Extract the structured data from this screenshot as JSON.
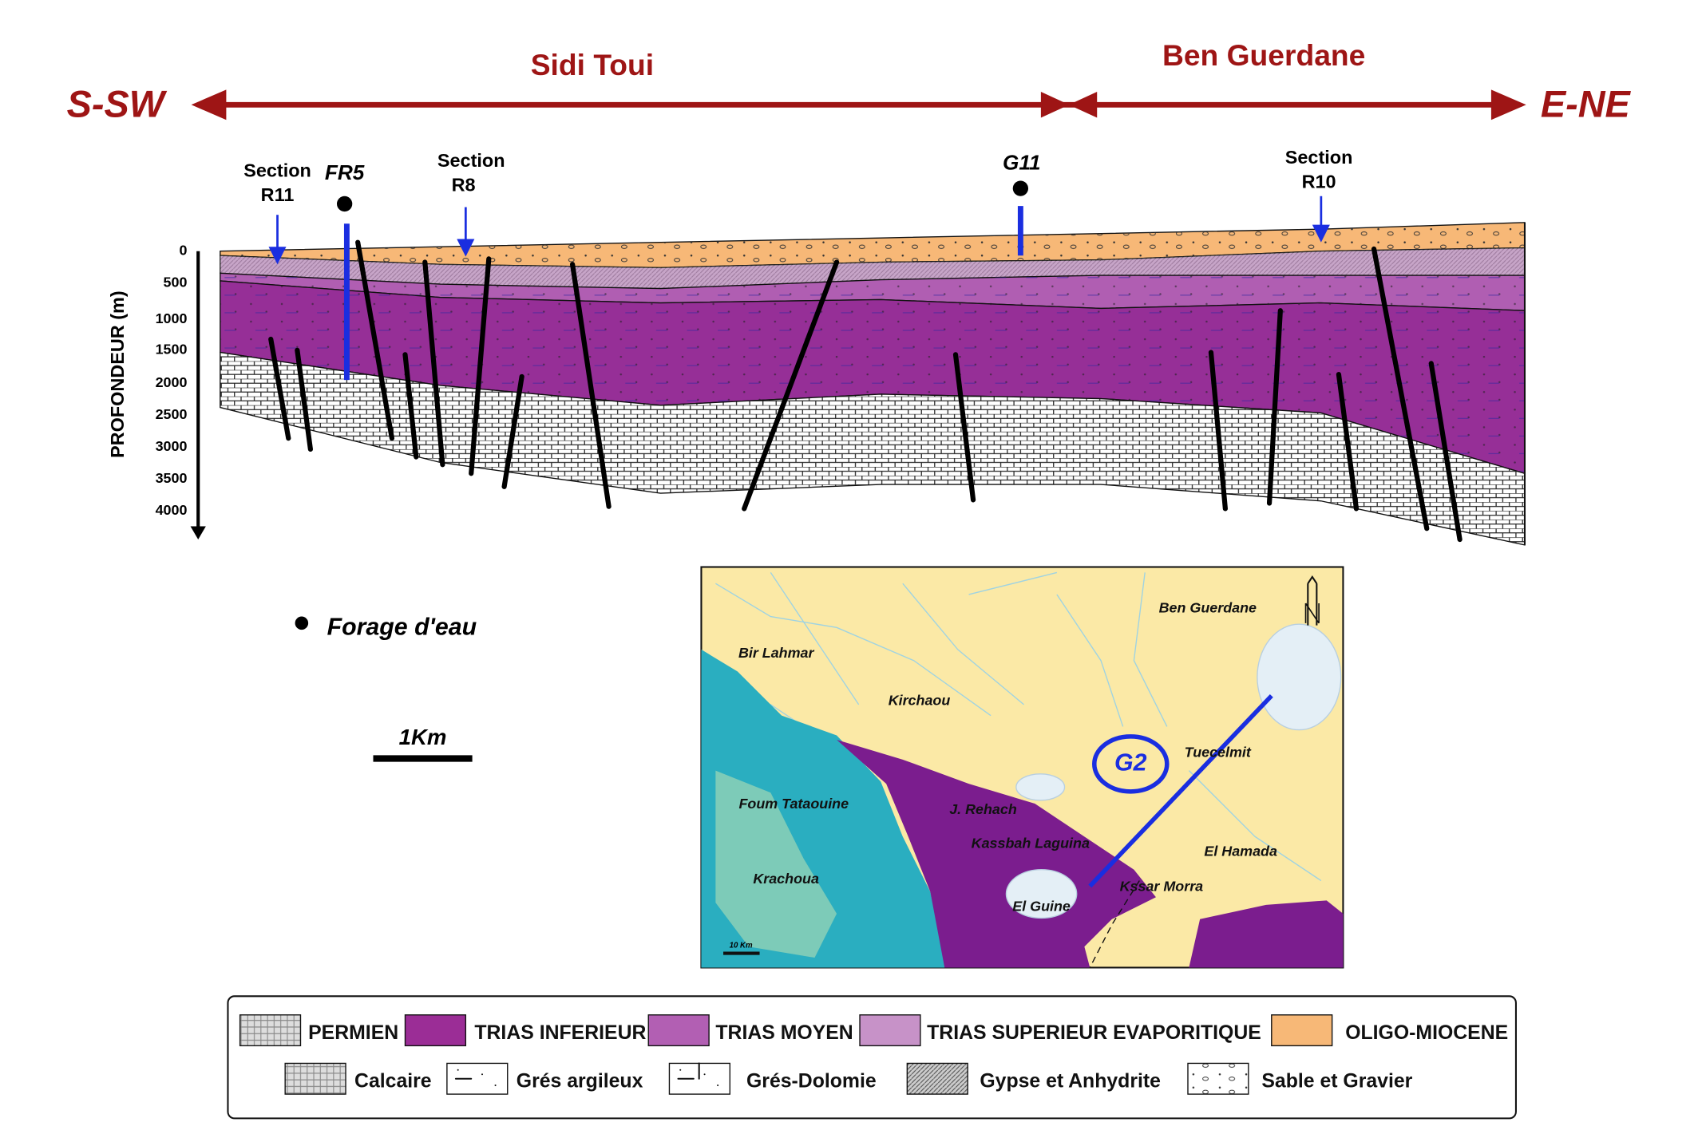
{
  "header": {
    "left": "S-SW",
    "right": "E-NE",
    "zone_1": "Sidi Toui",
    "zone_2": "Ben Guerdane"
  },
  "section": {
    "axis_label": "PROFONDEUR (m)",
    "depth_ticks": [
      "0",
      "500",
      "1000",
      "1500",
      "2000",
      "2500",
      "3000",
      "3500",
      "4000"
    ],
    "wells": [
      {
        "label": "FR5"
      },
      {
        "label": "G11"
      }
    ],
    "section_markers": [
      {
        "lines": [
          "Section",
          "R11"
        ]
      },
      {
        "lines": [
          "Section",
          "R8"
        ]
      },
      {
        "lines": [
          "Section",
          "R10"
        ]
      }
    ]
  },
  "key": {
    "well": "Forage d'eau",
    "scale": "1Km"
  },
  "map": {
    "places": [
      "Ben Guerdane",
      "Bir Lahmar",
      "Kirchaou",
      "Tuecelmit",
      "Foum Tataouine",
      "J. Rehach",
      "Kassbah Laguina",
      "El Hamada",
      "Krachoua",
      "Kssar Morra",
      "El Guine"
    ],
    "zone_label": "G2",
    "scale": "10 Km"
  },
  "legend": {
    "row_1": [
      "PERMIEN",
      "TRIAS INFERIEUR",
      "TRIAS MOYEN",
      "TRIAS SUPERIEUR EVAPORITIQUE",
      "OLIGO-MIOCENE"
    ],
    "row_2": [
      "Calcaire",
      "Grés argileux",
      "Grés-Dolomie",
      "Gypse et Anhydrite",
      "Sable et Gravier"
    ]
  }
}
